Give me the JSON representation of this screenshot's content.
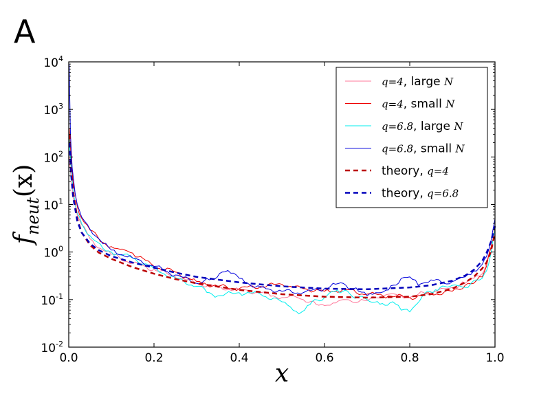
{
  "panel_label": "A",
  "chart_data": {
    "type": "line",
    "xlabel": "x",
    "ylabel": "f_neut(x)",
    "ylabel_main": "f",
    "ylabel_sub": "neut",
    "ylabel_arg": "(x)",
    "xscale": "linear",
    "yscale": "log",
    "xlim": [
      0.0,
      1.0
    ],
    "ylim": [
      0.01,
      10000
    ],
    "x_ticks": [
      0.0,
      0.2,
      0.4,
      0.6,
      0.8,
      1.0
    ],
    "x_tick_labels": [
      "0.0",
      "0.2",
      "0.4",
      "0.6",
      "0.8",
      "1.0"
    ],
    "y_ticks": [
      0.01,
      0.1,
      1,
      10,
      100,
      1000,
      10000
    ],
    "y_tick_labels": [
      {
        "base": "10",
        "exp": "-2"
      },
      {
        "base": "10",
        "exp": "-1"
      },
      {
        "base": "10",
        "exp": "0"
      },
      {
        "base": "10",
        "exp": "1"
      },
      {
        "base": "10",
        "exp": "2"
      },
      {
        "base": "10",
        "exp": "3"
      },
      {
        "base": "10",
        "exp": "4"
      }
    ],
    "legend_position": "top-right",
    "series": [
      {
        "name": "q=4, large N",
        "label_math": "q=4",
        "label_text": ", large ",
        "label_var": "N",
        "color": "#ff7799",
        "style": "solid",
        "width": 1,
        "x": [
          0.001,
          0.005,
          0.01,
          0.02,
          0.03,
          0.05,
          0.08,
          0.1,
          0.15,
          0.2,
          0.25,
          0.3,
          0.35,
          0.4,
          0.45,
          0.48,
          0.5,
          0.52,
          0.55,
          0.58,
          0.6,
          0.62,
          0.65,
          0.68,
          0.7,
          0.72,
          0.75,
          0.78,
          0.8,
          0.82,
          0.85,
          0.88,
          0.9,
          0.93,
          0.95,
          0.97,
          0.98,
          0.99,
          1.0
        ],
        "y": [
          100,
          40,
          14,
          6,
          3.8,
          1.9,
          1.1,
          0.9,
          0.58,
          0.43,
          0.3,
          0.22,
          0.18,
          0.16,
          0.14,
          0.12,
          0.11,
          0.12,
          0.1,
          0.08,
          0.075,
          0.085,
          0.1,
          0.09,
          0.095,
          0.11,
          0.13,
          0.12,
          0.11,
          0.13,
          0.14,
          0.17,
          0.18,
          0.22,
          0.28,
          0.35,
          0.6,
          1.2,
          2.5
        ]
      },
      {
        "name": "q=4, small N",
        "label_math": "q=4",
        "label_text": ", small ",
        "label_var": "N",
        "color": "#ee0000",
        "style": "solid",
        "width": 1,
        "x": [
          0.001,
          0.005,
          0.01,
          0.02,
          0.03,
          0.05,
          0.08,
          0.1,
          0.12,
          0.15,
          0.2,
          0.25,
          0.3,
          0.35,
          0.4,
          0.45,
          0.5,
          0.52,
          0.55,
          0.6,
          0.65,
          0.7,
          0.75,
          0.8,
          0.85,
          0.9,
          0.93,
          0.95,
          0.97,
          0.98,
          0.99,
          1.0
        ],
        "y": [
          400,
          110,
          30,
          9,
          5.2,
          2.9,
          1.6,
          1.3,
          1.15,
          0.95,
          0.5,
          0.38,
          0.24,
          0.19,
          0.17,
          0.19,
          0.21,
          0.19,
          0.17,
          0.15,
          0.16,
          0.13,
          0.12,
          0.11,
          0.13,
          0.15,
          0.2,
          0.22,
          0.3,
          0.5,
          1.2,
          3.5
        ]
      },
      {
        "name": "q=6.8, large N",
        "label_math": "q=6.8",
        "label_text": ", large ",
        "label_var": "N",
        "color": "#00eeee",
        "style": "solid",
        "width": 1,
        "x": [
          0.001,
          0.005,
          0.01,
          0.02,
          0.03,
          0.05,
          0.08,
          0.1,
          0.15,
          0.2,
          0.25,
          0.3,
          0.33,
          0.35,
          0.4,
          0.45,
          0.5,
          0.52,
          0.54,
          0.56,
          0.6,
          0.63,
          0.66,
          0.7,
          0.73,
          0.76,
          0.78,
          0.8,
          0.83,
          0.86,
          0.9,
          0.93,
          0.95,
          0.97,
          0.98,
          0.99,
          1.0
        ],
        "y": [
          250,
          70,
          20,
          6.5,
          4,
          2.2,
          1.2,
          1,
          0.75,
          0.45,
          0.28,
          0.19,
          0.14,
          0.12,
          0.14,
          0.13,
          0.09,
          0.07,
          0.05,
          0.075,
          0.11,
          0.16,
          0.13,
          0.1,
          0.08,
          0.09,
          0.06,
          0.055,
          0.12,
          0.16,
          0.2,
          0.18,
          0.25,
          0.28,
          0.4,
          0.9,
          3
        ]
      },
      {
        "name": "q=6.8, small N",
        "label_math": "q=6.8",
        "label_text": ", small ",
        "label_var": "N",
        "color": "#0000dd",
        "style": "solid",
        "width": 1,
        "x": [
          0.001,
          0.004,
          0.008,
          0.015,
          0.02,
          0.03,
          0.05,
          0.08,
          0.1,
          0.15,
          0.2,
          0.25,
          0.3,
          0.33,
          0.36,
          0.38,
          0.4,
          0.42,
          0.45,
          0.5,
          0.55,
          0.6,
          0.62,
          0.65,
          0.68,
          0.7,
          0.72,
          0.75,
          0.78,
          0.8,
          0.82,
          0.85,
          0.88,
          0.9,
          0.93,
          0.95,
          0.97,
          0.98,
          0.99,
          1.0
        ],
        "y": [
          9000,
          300,
          60,
          17,
          10,
          5.5,
          3,
          1.5,
          1.1,
          0.75,
          0.5,
          0.33,
          0.22,
          0.26,
          0.38,
          0.36,
          0.28,
          0.22,
          0.18,
          0.15,
          0.14,
          0.17,
          0.22,
          0.2,
          0.15,
          0.12,
          0.14,
          0.16,
          0.28,
          0.3,
          0.2,
          0.26,
          0.22,
          0.24,
          0.3,
          0.4,
          0.55,
          0.8,
          1.6,
          5
        ]
      },
      {
        "name": "theory, q=4",
        "label_text": "theory, ",
        "label_math": "q=4",
        "color": "#bb0000",
        "style": "dashed",
        "width": 2.5,
        "x": [
          0.002,
          0.005,
          0.01,
          0.02,
          0.03,
          0.05,
          0.07,
          0.1,
          0.15,
          0.2,
          0.25,
          0.3,
          0.4,
          0.5,
          0.6,
          0.7,
          0.8,
          0.85,
          0.9,
          0.93,
          0.95,
          0.97,
          0.98,
          0.99,
          1.0
        ],
        "y": [
          300,
          70,
          20,
          5,
          2.6,
          1.4,
          0.98,
          0.72,
          0.48,
          0.35,
          0.27,
          0.22,
          0.16,
          0.13,
          0.115,
          0.11,
          0.115,
          0.13,
          0.17,
          0.23,
          0.3,
          0.45,
          0.6,
          1.0,
          2.5
        ]
      },
      {
        "name": "theory, q=6.8",
        "label_text": "theory, ",
        "label_math": "q=6.8",
        "color": "#0000bb",
        "style": "dashed",
        "width": 2.5,
        "x": [
          0.002,
          0.005,
          0.01,
          0.02,
          0.03,
          0.05,
          0.07,
          0.1,
          0.15,
          0.2,
          0.25,
          0.3,
          0.4,
          0.5,
          0.6,
          0.7,
          0.8,
          0.85,
          0.9,
          0.93,
          0.95,
          0.97,
          0.98,
          0.99,
          1.0
        ],
        "y": [
          200,
          50,
          15,
          4.5,
          2.6,
          1.5,
          1.1,
          0.82,
          0.6,
          0.47,
          0.37,
          0.3,
          0.23,
          0.19,
          0.17,
          0.165,
          0.18,
          0.2,
          0.25,
          0.32,
          0.42,
          0.65,
          0.95,
          1.6,
          3.5
        ]
      }
    ]
  }
}
